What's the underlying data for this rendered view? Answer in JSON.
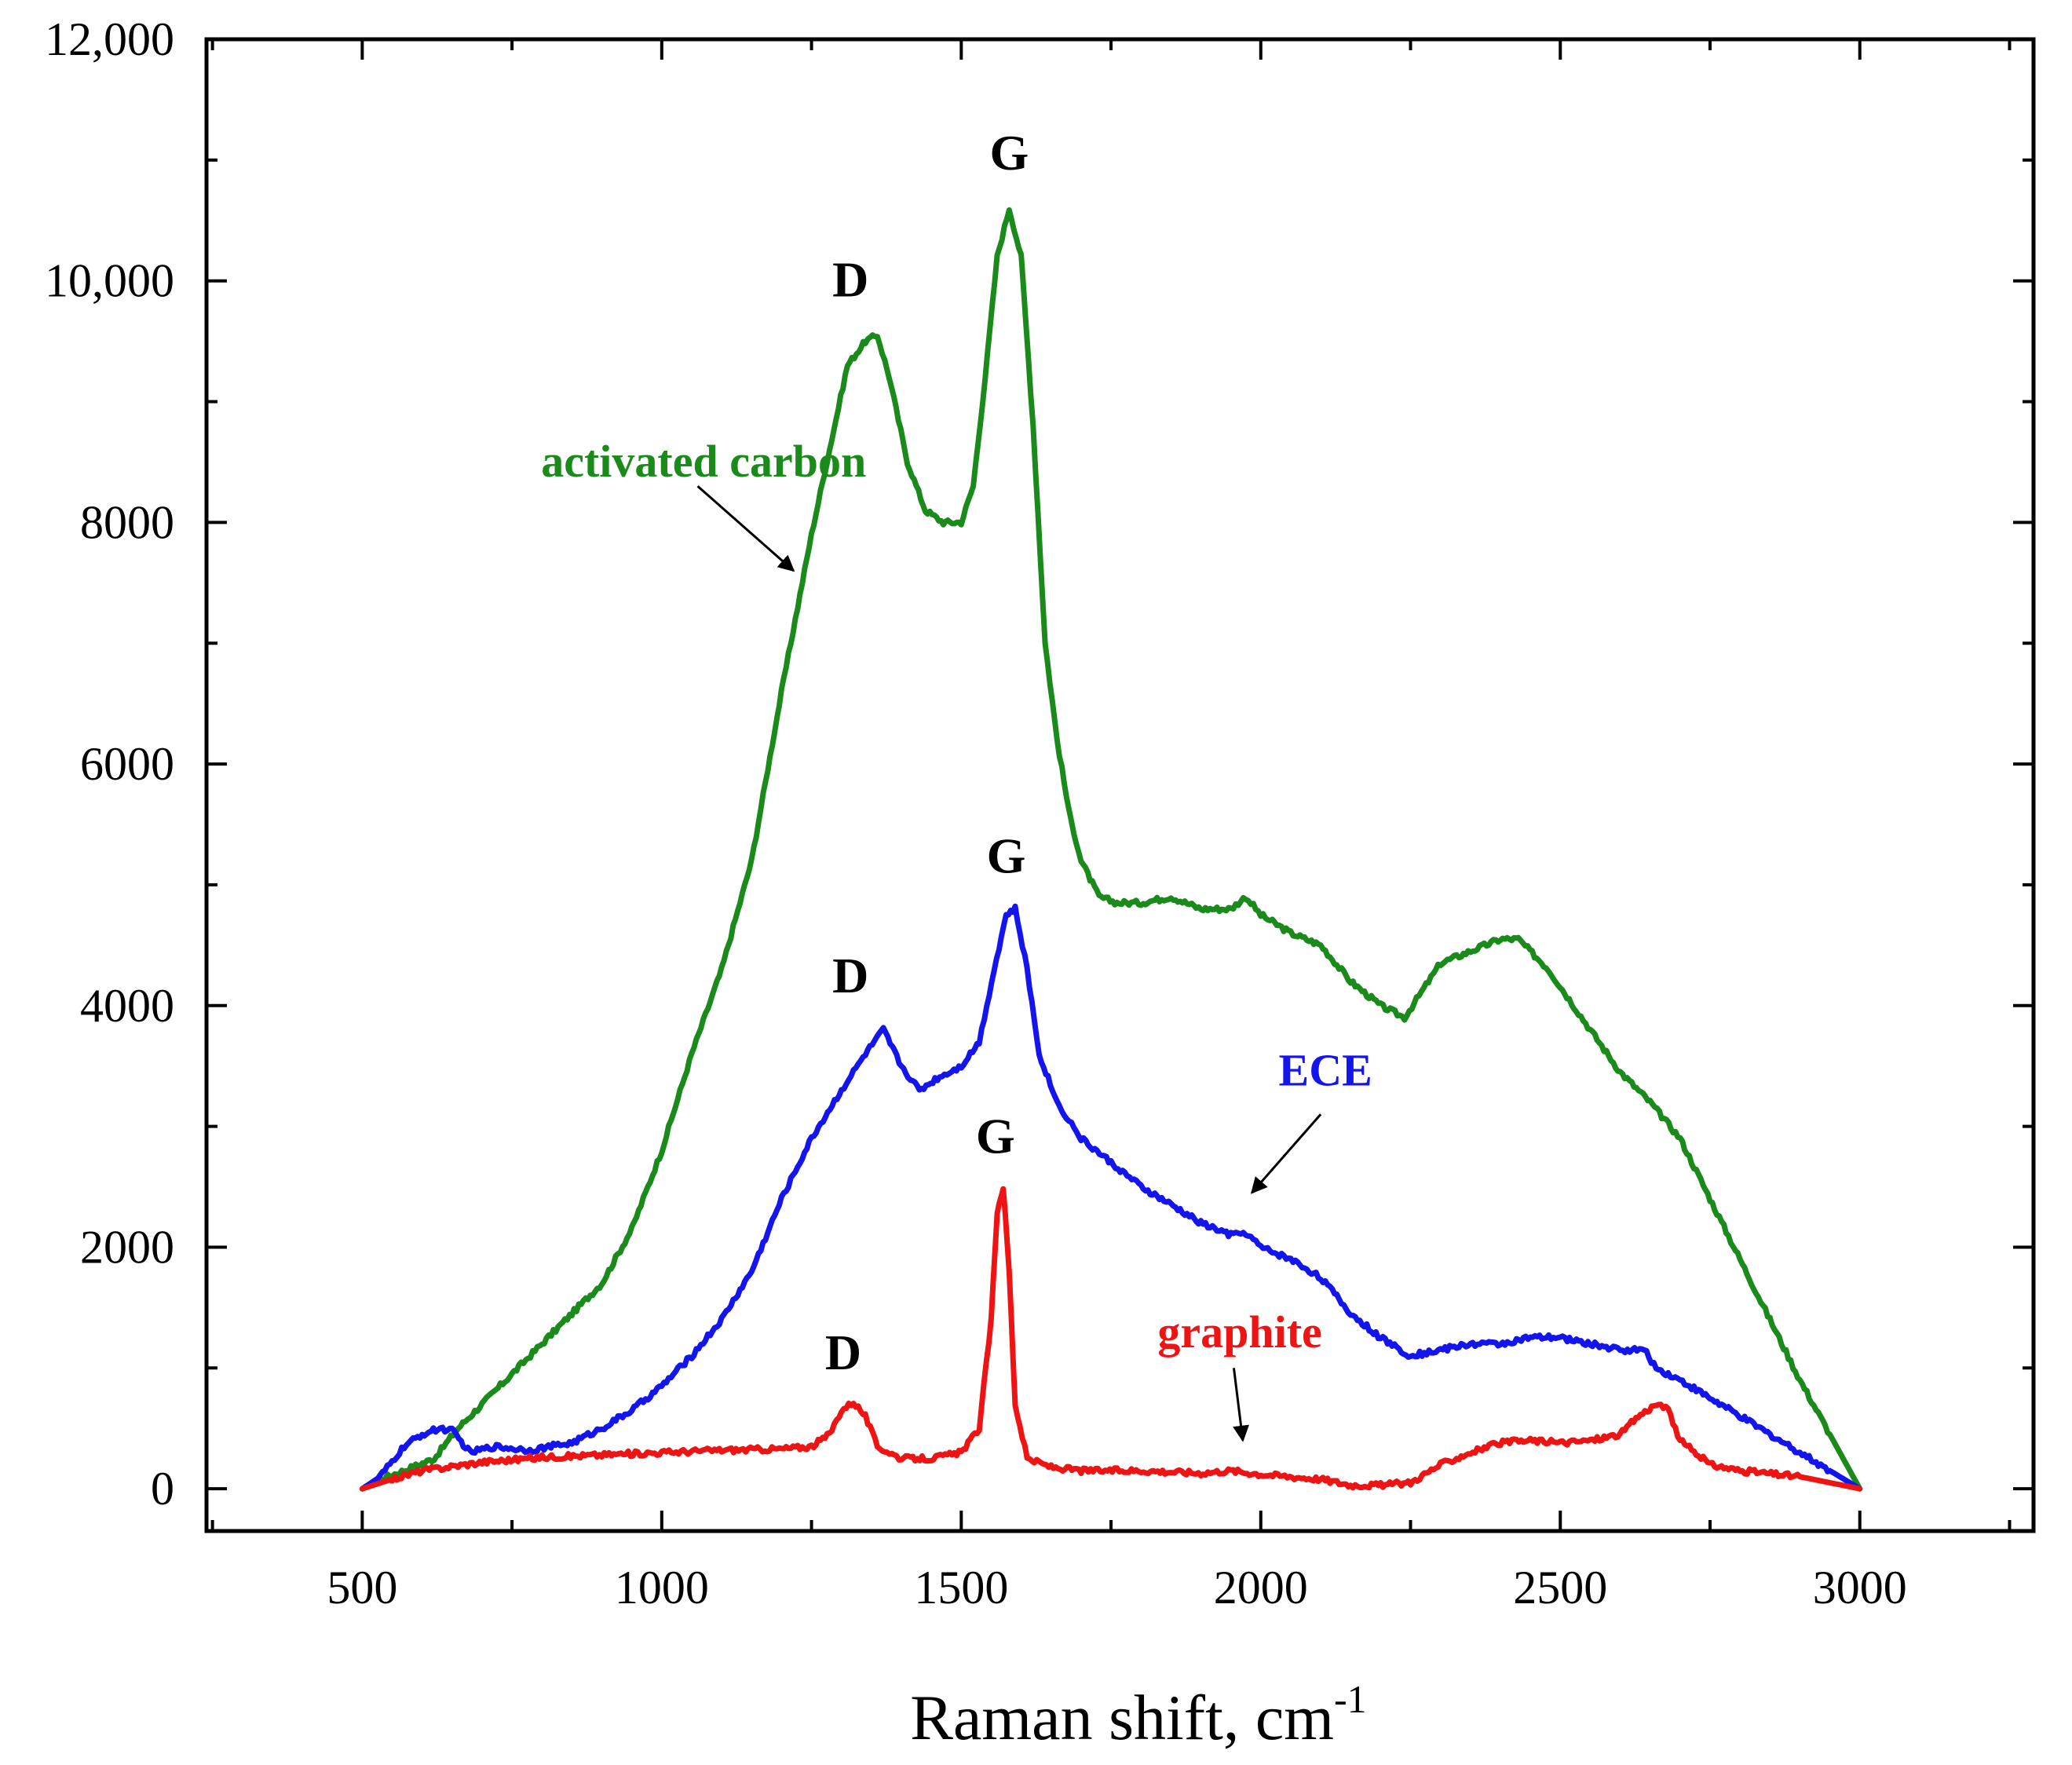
{
  "chart_data": {
    "type": "line",
    "title": "",
    "xlabel": "Raman shift, cm",
    "xlabel_superscript": "-1",
    "ylabel": "",
    "xlim": [
      240,
      3290
    ],
    "ylim": [
      -350,
      12000
    ],
    "x_ticks": [
      500,
      1000,
      1500,
      2000,
      2500,
      3000
    ],
    "x_tick_labels": [
      "500",
      "1000",
      "1500",
      "2000",
      "2500",
      "3000"
    ],
    "y_ticks": [
      0,
      2000,
      4000,
      6000,
      8000,
      10000,
      12000
    ],
    "y_tick_labels": [
      "0",
      "2000",
      "4000",
      "6000",
      "8000",
      "10,000",
      "12,000"
    ],
    "grid": false,
    "series": [
      {
        "name": "activated carbon",
        "color": "#1a8a1a",
        "x": [
          500,
          530,
          570,
          620,
          660,
          700,
          750,
          800,
          850,
          900,
          950,
          1000,
          1050,
          1100,
          1150,
          1200,
          1250,
          1280,
          1310,
          1340,
          1360,
          1380,
          1410,
          1440,
          1470,
          1500,
          1520,
          1540,
          1560,
          1580,
          1600,
          1620,
          1640,
          1660,
          1680,
          1700,
          1730,
          1760,
          1800,
          1850,
          1900,
          1950,
          1975,
          2000,
          2050,
          2100,
          2150,
          2200,
          2240,
          2260,
          2300,
          2350,
          2400,
          2430,
          2480,
          2550,
          2600,
          2650,
          2700,
          2750,
          2800,
          2850,
          2900,
          2950,
          3000
        ],
        "y": [
          0,
          80,
          150,
          250,
          500,
          700,
          950,
          1200,
          1450,
          1700,
          2150,
          2800,
          3600,
          4300,
          5200,
          6600,
          7900,
          8600,
          9300,
          9500,
          9550,
          9200,
          8500,
          8100,
          8000,
          8000,
          8300,
          9200,
          10200,
          10600,
          10200,
          8800,
          7000,
          6200,
          5600,
          5200,
          4900,
          4850,
          4850,
          4900,
          4800,
          4800,
          4900,
          4750,
          4600,
          4500,
          4200,
          4000,
          3900,
          4050,
          4350,
          4450,
          4550,
          4550,
          4300,
          3800,
          3450,
          3200,
          2900,
          2400,
          1900,
          1400,
          900,
          450,
          0
        ]
      },
      {
        "name": "ECE",
        "color": "#1414ee",
        "x": [
          500,
          530,
          570,
          600,
          630,
          650,
          680,
          720,
          780,
          850,
          900,
          950,
          1000,
          1050,
          1100,
          1150,
          1200,
          1250,
          1300,
          1340,
          1370,
          1400,
          1430,
          1460,
          1500,
          1530,
          1555,
          1575,
          1590,
          1610,
          1630,
          1660,
          1700,
          1750,
          1800,
          1850,
          1900,
          1950,
          1975,
          2000,
          2050,
          2100,
          2150,
          2200,
          2250,
          2300,
          2350,
          2400,
          2450,
          2500,
          2550,
          2600,
          2640,
          2660,
          2700,
          2750,
          2800,
          2850,
          2900,
          2950,
          3000
        ],
        "y": [
          0,
          100,
          350,
          450,
          500,
          480,
          300,
          350,
          320,
          380,
          500,
          650,
          850,
          1100,
          1400,
          1800,
          2400,
          2900,
          3300,
          3600,
          3800,
          3500,
          3300,
          3400,
          3500,
          3700,
          4300,
          4750,
          4800,
          4300,
          3600,
          3200,
          2900,
          2700,
          2500,
          2350,
          2200,
          2100,
          2120,
          2000,
          1900,
          1750,
          1450,
          1250,
          1100,
          1150,
          1200,
          1200,
          1250,
          1250,
          1200,
          1150,
          1150,
          1000,
          900,
          750,
          600,
          450,
          300,
          150,
          0
        ]
      },
      {
        "name": "graphite",
        "color": "#ee1414",
        "x": [
          500,
          550,
          600,
          700,
          800,
          900,
          1000,
          1100,
          1200,
          1250,
          1280,
          1300,
          1320,
          1340,
          1360,
          1400,
          1450,
          1500,
          1530,
          1550,
          1560,
          1570,
          1580,
          1590,
          1610,
          1650,
          1700,
          1800,
          1900,
          1950,
          2000,
          2100,
          2150,
          2200,
          2250,
          2300,
          2350,
          2400,
          2450,
          2500,
          2550,
          2600,
          2630,
          2660,
          2680,
          2700,
          2750,
          2800,
          2900,
          3000
        ],
        "y": [
          0,
          80,
          150,
          220,
          260,
          280,
          300,
          320,
          330,
          350,
          450,
          650,
          720,
          600,
          350,
          250,
          250,
          300,
          500,
          1400,
          2300,
          2500,
          1800,
          700,
          250,
          180,
          150,
          150,
          130,
          150,
          120,
          80,
          30,
          30,
          50,
          200,
          300,
          380,
          400,
          380,
          400,
          450,
          600,
          700,
          650,
          400,
          200,
          150,
          100,
          0
        ]
      }
    ],
    "annotations": [
      {
        "name": "peak-d-activated-carbon",
        "text": "D",
        "color": "#000000",
        "x": 1315,
        "y": 9870
      },
      {
        "name": "peak-g-activated-carbon",
        "text": "G",
        "color": "#000000",
        "x": 1580,
        "y": 10920
      },
      {
        "name": "peak-d-ece",
        "text": "D",
        "color": "#000000",
        "x": 1315,
        "y": 4110
      },
      {
        "name": "peak-g-ece",
        "text": "G",
        "color": "#000000",
        "x": 1575,
        "y": 5100
      },
      {
        "name": "peak-d-graphite",
        "text": "D",
        "color": "#000000",
        "x": 1303,
        "y": 990
      },
      {
        "name": "peak-g-graphite",
        "text": "G",
        "color": "#000000",
        "x": 1557,
        "y": 2780
      },
      {
        "name": "label-activated-carbon",
        "text": "activated carbon",
        "color": "#1a8a1a",
        "x": 1070,
        "y": 8380
      },
      {
        "name": "label-ece",
        "text": "ECE",
        "color": "#1414ee",
        "x": 2108,
        "y": 3340
      },
      {
        "name": "label-graphite",
        "text": "graphite",
        "color": "#ee1414",
        "x": 1965,
        "y": 1170
      }
    ],
    "arrows": [
      {
        "name": "arrow-activated-carbon",
        "from": [
          1060,
          8300
        ],
        "to": [
          1220,
          7600
        ]
      },
      {
        "name": "arrow-ece",
        "from": [
          2100,
          3100
        ],
        "to": [
          1985,
          2450
        ]
      },
      {
        "name": "arrow-graphite",
        "from": [
          1955,
          1000
        ],
        "to": [
          1970,
          400
        ]
      }
    ]
  }
}
